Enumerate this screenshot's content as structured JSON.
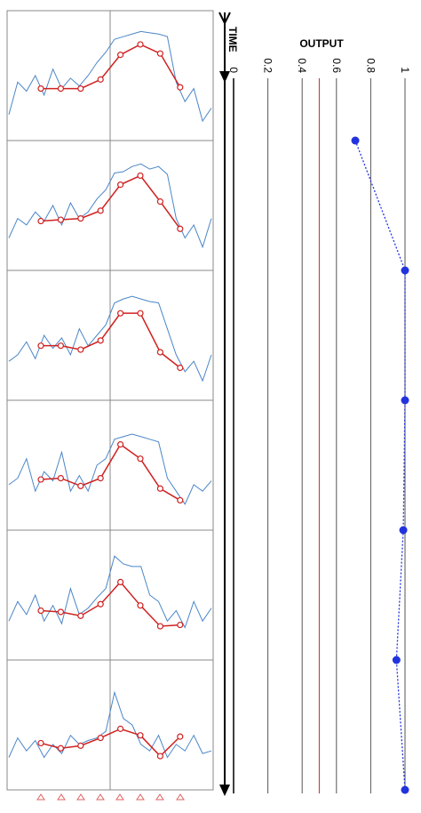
{
  "chart_data": [
    {
      "type": "dotline",
      "x_label": "OUTPUT",
      "y_label": "TIME",
      "xlim": [
        0,
        1
      ],
      "xticks": [
        0,
        0.2,
        0.4,
        0.6,
        0.8,
        1
      ],
      "threshold": 0.5,
      "threshold_color": "#d04050",
      "color": "#2233dd",
      "values": [
        0.71,
        1,
        1,
        0.99,
        0.95,
        1
      ]
    },
    {
      "type": "panel",
      "ylim": [
        0,
        1
      ],
      "color": "#d02020",
      "signal_color": "#4a86c8",
      "values": [
        0.4,
        0.4,
        0.4,
        0.47,
        0.66,
        0.74,
        0.67,
        0.41
      ],
      "signal": [
        0.2,
        0.45,
        0.38,
        0.5,
        0.35,
        0.55,
        0.4,
        0.48,
        0.42,
        0.5,
        0.6,
        0.68,
        0.78,
        0.8,
        0.82,
        0.84,
        0.83,
        0.82,
        0.8,
        0.45,
        0.3,
        0.4,
        0.15,
        0.25
      ]
    },
    {
      "type": "panel",
      "ylim": [
        0,
        1
      ],
      "color": "#d02020",
      "signal_color": "#4a86c8",
      "values": [
        0.38,
        0.39,
        0.4,
        0.46,
        0.66,
        0.73,
        0.53,
        0.32
      ],
      "signal": [
        0.25,
        0.4,
        0.35,
        0.45,
        0.38,
        0.5,
        0.35,
        0.52,
        0.4,
        0.45,
        0.55,
        0.62,
        0.75,
        0.76,
        0.8,
        0.82,
        0.78,
        0.8,
        0.74,
        0.4,
        0.25,
        0.35,
        0.18,
        0.4
      ]
    },
    {
      "type": "panel",
      "ylim": [
        0,
        1
      ],
      "color": "#d02020",
      "signal_color": "#4a86c8",
      "values": [
        0.42,
        0.42,
        0.39,
        0.46,
        0.67,
        0.67,
        0.37,
        0.25
      ],
      "signal": [
        0.3,
        0.35,
        0.45,
        0.32,
        0.5,
        0.4,
        0.48,
        0.35,
        0.55,
        0.42,
        0.5,
        0.58,
        0.75,
        0.78,
        0.8,
        0.78,
        0.76,
        0.75,
        0.55,
        0.35,
        0.22,
        0.3,
        0.15,
        0.35
      ]
    },
    {
      "type": "panel",
      "ylim": [
        0,
        1
      ],
      "color": "#d02020",
      "signal_color": "#4a86c8",
      "values": [
        0.39,
        0.4,
        0.34,
        0.4,
        0.66,
        0.55,
        0.32,
        0.23
      ],
      "signal": [
        0.35,
        0.4,
        0.55,
        0.3,
        0.45,
        0.38,
        0.6,
        0.3,
        0.42,
        0.3,
        0.5,
        0.55,
        0.7,
        0.72,
        0.74,
        0.72,
        0.7,
        0.68,
        0.4,
        0.3,
        0.2,
        0.35,
        0.3,
        0.38
      ]
    },
    {
      "type": "panel",
      "ylim": [
        0,
        1
      ],
      "color": "#d02020",
      "signal_color": "#4a86c8",
      "values": [
        0.38,
        0.37,
        0.34,
        0.43,
        0.6,
        0.42,
        0.26,
        0.27
      ],
      "signal": [
        0.3,
        0.45,
        0.35,
        0.5,
        0.3,
        0.42,
        0.28,
        0.55,
        0.35,
        0.4,
        0.48,
        0.55,
        0.8,
        0.74,
        0.72,
        0.72,
        0.5,
        0.45,
        0.3,
        0.38,
        0.25,
        0.45,
        0.3,
        0.4
      ]
    },
    {
      "type": "panel",
      "ylim": [
        0,
        1
      ],
      "color": "#d02020",
      "signal_color": "#4a86c8",
      "values": [
        0.36,
        0.32,
        0.34,
        0.4,
        0.47,
        0.42,
        0.26,
        0.41
      ],
      "signal": [
        0.25,
        0.4,
        0.3,
        0.38,
        0.25,
        0.35,
        0.28,
        0.42,
        0.35,
        0.38,
        0.4,
        0.45,
        0.75,
        0.55,
        0.5,
        0.35,
        0.3,
        0.42,
        0.25,
        0.35,
        0.3,
        0.42,
        0.28,
        0.3
      ]
    }
  ]
}
